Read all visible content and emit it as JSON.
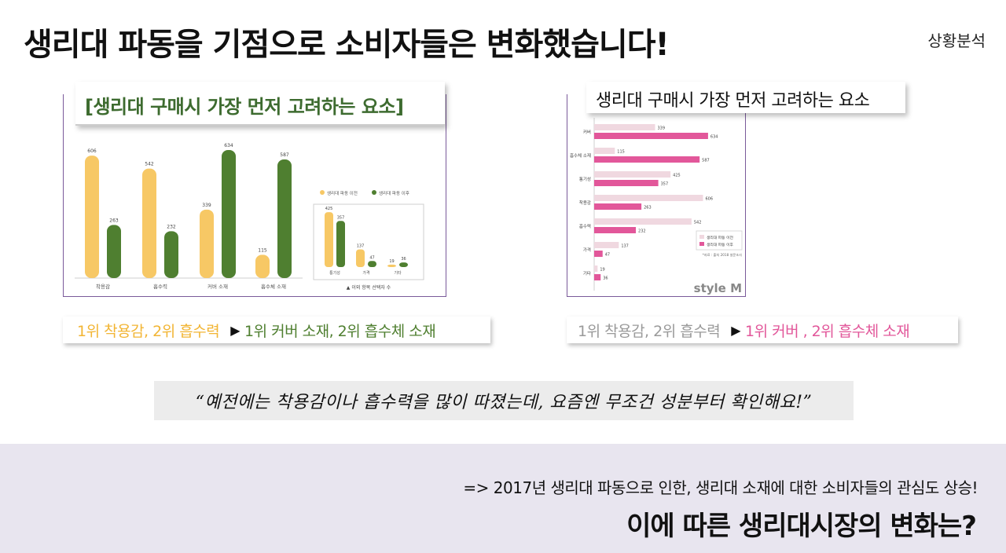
{
  "page": {
    "headline": "생리대 파동을 기점으로 소비자들은 변화했습니다!",
    "section_tag": "상황분석",
    "quote": "“예전에는 착용감이나 흡수력을 많이 따졌는데, 요즘엔 무조건 성분부터 확인해요!”",
    "note": "=> 2017년 생리대 파동으로 인한, 생리대 소재에 대한 소비자들의 관심도 상승!",
    "question": "이에 따른 생리대시장의 변화는?"
  },
  "left_summary": {
    "before": "1위 착용감, 2위 흡수력",
    "arrow": "▶",
    "after": "1위 커버 소재, 2위 흡수체 소재"
  },
  "right_summary": {
    "before": "1위 착용감, 2위 흡수력",
    "arrow": "▶",
    "after": "1위 커버 , 2위 흡수체 소재"
  },
  "colors": {
    "before_yellow": "#f7c865",
    "after_green": "#4f7f30",
    "title_green": "#3d6b2f",
    "before_pink": "#f0d8e0",
    "after_pink": "#e2579a",
    "strip_gray": "#9a9a9a",
    "frame_purple": "#7a5a9a"
  },
  "chart_data": [
    {
      "type": "bar",
      "title": "[생리대 구매시 가장 먼저 고려하는 요소]",
      "categories": [
        "착용감",
        "흡수력",
        "커버 소재",
        "흡수체 소재"
      ],
      "series": [
        {
          "name": "생리대 파동 이전",
          "values": [
            606,
            542,
            339,
            115
          ]
        },
        {
          "name": "생리대 파동 이후",
          "values": [
            263,
            232,
            634,
            587
          ]
        }
      ],
      "ylim": [
        0,
        700
      ],
      "legend_position": "right",
      "inset": {
        "categories": [
          "통기성",
          "가격",
          "기타"
        ],
        "series": [
          {
            "name": "생리대 파동 이전",
            "values": [
              425,
              137,
              19
            ]
          },
          {
            "name": "생리대 파동 이후",
            "values": [
              357,
              47,
              36
            ]
          }
        ],
        "caption": "▲ 이외 항목 선택자 수"
      }
    },
    {
      "type": "bar",
      "orientation": "horizontal",
      "title": "생리대 구매시 가장 먼저 고려하는 요소",
      "categories": [
        "커버",
        "흡수체 소재",
        "통기성",
        "착용감",
        "흡수력",
        "가격",
        "기타"
      ],
      "series": [
        {
          "name": "생리대 파동 이전",
          "values": [
            339,
            115,
            425,
            606,
            542,
            137,
            19
          ]
        },
        {
          "name": "생리대 파동 이후",
          "values": [
            634,
            587,
            357,
            263,
            232,
            47,
            36
          ]
        }
      ],
      "xlim": [
        0,
        700
      ],
      "legend_position": "bottom-right",
      "source": "*자료 : 출처 2018 설문조사",
      "brand": "style M"
    }
  ]
}
